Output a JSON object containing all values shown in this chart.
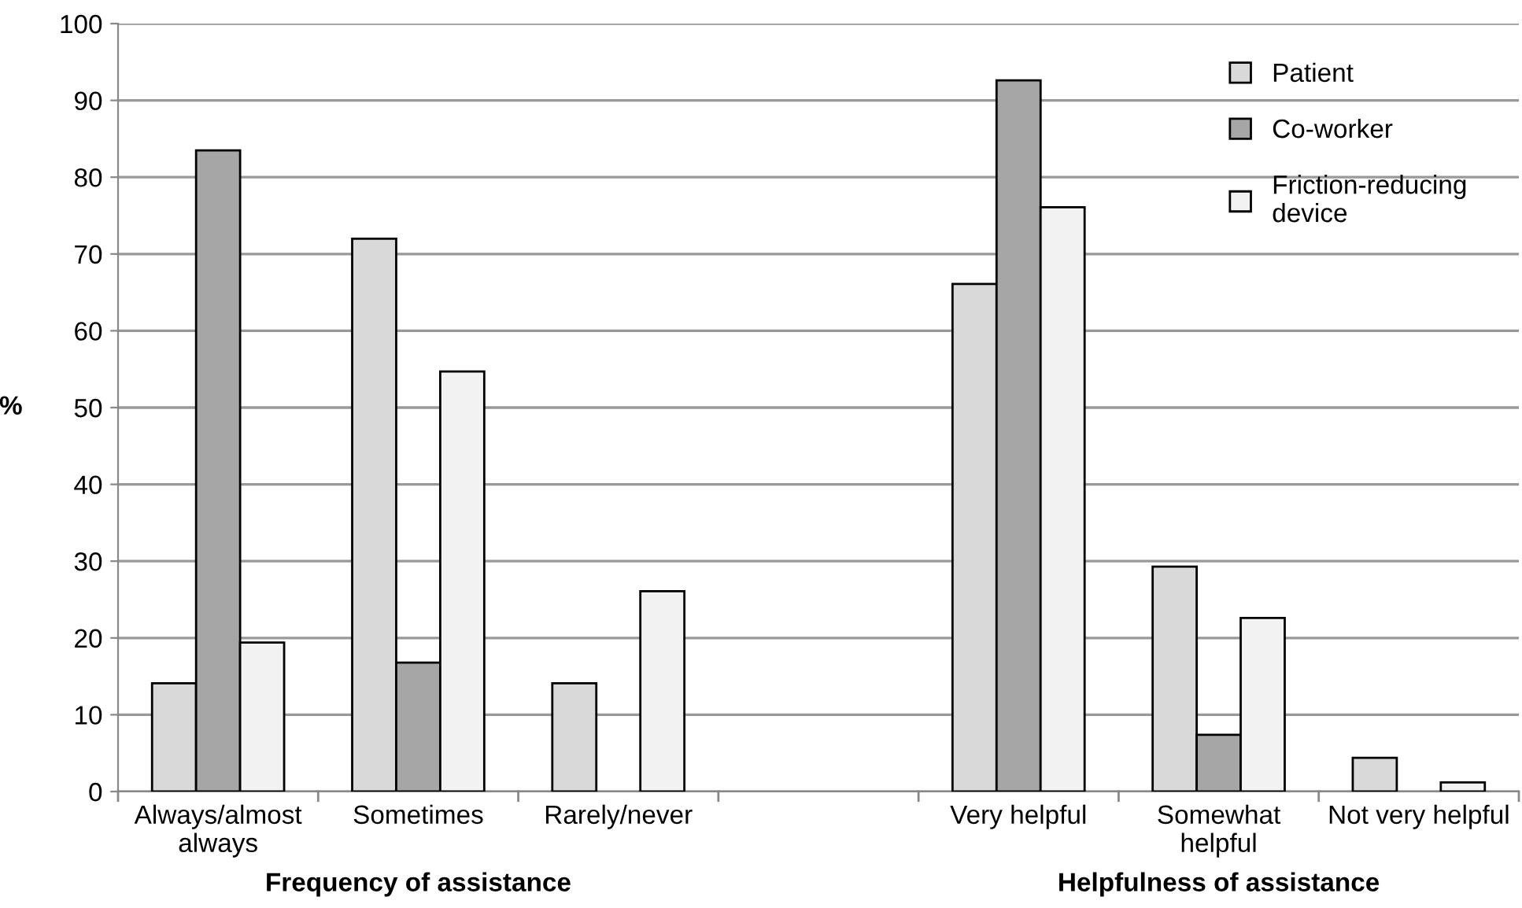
{
  "chart_data": {
    "type": "bar",
    "ylabel": "%",
    "categories": [
      "Always/almost\nalways",
      "Sometimes",
      "Rarely/never",
      null,
      "Very helpful",
      "Somewhat\nhelpful",
      "Not very helpful"
    ],
    "series": [
      {
        "name": "Patient",
        "color": "#d9d9d9",
        "values": [
          14.1,
          72.0,
          14.1,
          null,
          66.1,
          29.3,
          4.4
        ]
      },
      {
        "name": "Co-worker",
        "color": "#a6a6a6",
        "values": [
          83.5,
          16.8,
          null,
          null,
          92.6,
          7.4,
          null
        ]
      },
      {
        "name": "Friction-reducing\ndevice",
        "color": "#f2f2f2",
        "values": [
          19.4,
          54.7,
          26.1,
          null,
          76.1,
          22.6,
          1.2
        ]
      }
    ],
    "ylim": [
      0,
      100
    ],
    "yticks": [
      0,
      10,
      20,
      30,
      40,
      50,
      60,
      70,
      80,
      90,
      100
    ],
    "grid": "y",
    "legend": "top right",
    "annotations": [
      "Frequency of assistance",
      "Helpfulness of assistance"
    ]
  }
}
